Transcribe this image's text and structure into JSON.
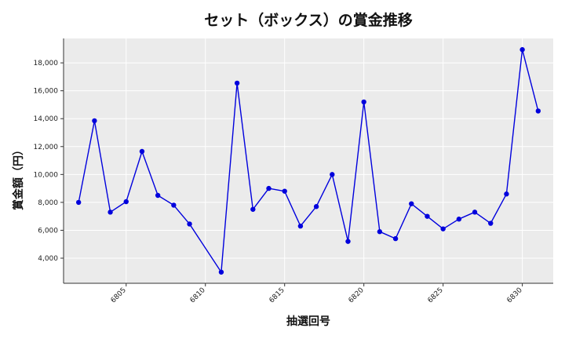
{
  "chart_data": {
    "type": "line",
    "title": "セット（ボックス）の賞金推移",
    "xlabel": "抽選回号",
    "ylabel": "賞金額（円）",
    "x": [
      6802,
      6803,
      6804,
      6805,
      6806,
      6807,
      6808,
      6809,
      6811,
      6812,
      6813,
      6814,
      6815,
      6816,
      6817,
      6818,
      6819,
      6820,
      6821,
      6822,
      6823,
      6824,
      6825,
      6826,
      6827,
      6828,
      6829,
      6830,
      6831
    ],
    "series": [
      {
        "values": [
          8000,
          13850,
          7300,
          8050,
          11650,
          8500,
          7800,
          6450,
          3000,
          16550,
          7500,
          9000,
          8800,
          6300,
          7700,
          10000,
          5200,
          15200,
          5900,
          5400,
          7900,
          7000,
          6100,
          6800,
          7300,
          6500,
          8600,
          18950,
          14550
        ],
        "color": "#0000dd"
      }
    ],
    "xticks": [
      6805,
      6810,
      6815,
      6820,
      6825,
      6830
    ],
    "yticks": [
      4000,
      6000,
      8000,
      10000,
      12000,
      14000,
      16000,
      18000
    ],
    "xlim": [
      6801.05,
      6831.95
    ],
    "ylim": [
      2200,
      19750
    ],
    "grid": true,
    "colors": {
      "plot_background": "#ebebeb",
      "grid": "#ffffff",
      "line": "#0000dd"
    }
  }
}
